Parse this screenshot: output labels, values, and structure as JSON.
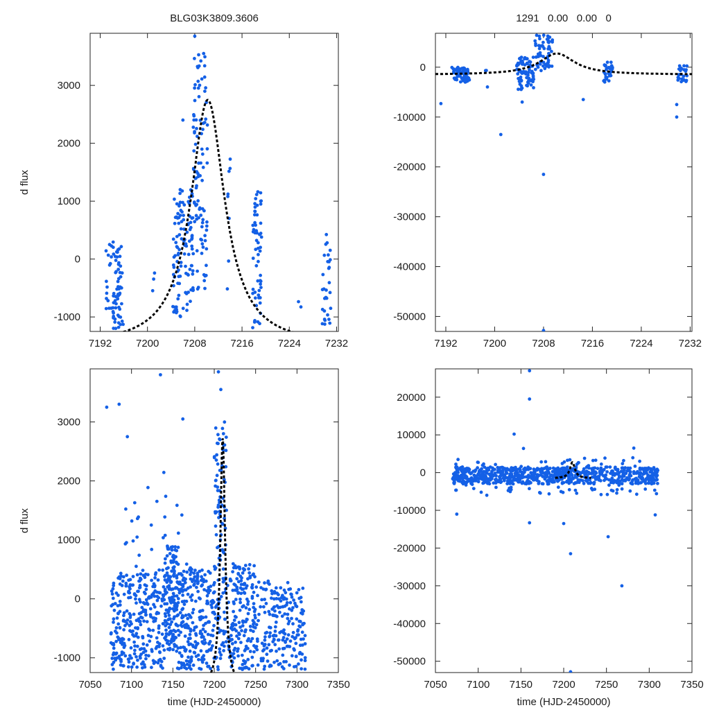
{
  "header": {
    "left_title": "BLG03K3809.3606",
    "right_title": "1291   0.00   0.00   0"
  },
  "style": {
    "point_color": "#1460e6",
    "model_color": "#000000"
  },
  "chart_data": [
    {
      "id": "top-left",
      "type": "scatter",
      "title": "BLG03K3809.3606",
      "xlabel": "",
      "ylabel": "d flux",
      "xlim": [
        7190.3,
        7232.3
      ],
      "ylim": [
        -1250,
        3900
      ],
      "xticks": [
        7192,
        7200,
        7208,
        7216,
        7224,
        7232
      ],
      "yticks": [
        -1000,
        0,
        1000,
        2000,
        3000
      ],
      "model": {
        "t0": 7210.2,
        "peak": 2750,
        "tE": 3.5,
        "baseline": -1500
      },
      "series": [
        {
          "name": "observations",
          "clusters": [
            {
              "x": [
                7193,
                7195.8
              ],
              "y": [
                -1200,
                300
              ],
              "n": 70
            },
            {
              "x": [
                7193,
                7196
              ],
              "y": [
                -1200,
                650
              ],
              "n": 6
            },
            {
              "x": [
                7200.8,
                7201.2
              ],
              "y": [
                -1100,
                330
              ],
              "n": 3
            },
            {
              "x": [
                7204.3,
                7207.8
              ],
              "y": [
                -1000,
                1200
              ],
              "n": 110
            },
            {
              "x": [
                7207.5,
                7210.2
              ],
              "y": [
                -600,
                3600
              ],
              "n": 100
            },
            {
              "x": [
                7213.5,
                7214
              ],
              "y": [
                -750,
                1800
              ],
              "n": 8
            },
            {
              "x": [
                7217.8,
                7219.3
              ],
              "y": [
                -1200,
                1220
              ],
              "n": 60
            },
            {
              "x": [
                7225.5,
                7226
              ],
              "y": [
                -1000,
                -650
              ],
              "n": 2
            },
            {
              "x": [
                7229.5,
                7231
              ],
              "y": [
                -1200,
                450
              ],
              "n": 30
            }
          ]
        }
      ],
      "points": [
        {
          "x": 7208.0,
          "y": 3850
        },
        {
          "x": 7206.0,
          "y": 2400
        },
        {
          "x": 7209.5,
          "y": 3550
        },
        {
          "x": 7210.0,
          "y": 500
        }
      ]
    },
    {
      "id": "top-right",
      "type": "scatter",
      "title": "1291   0.00   0.00   0",
      "xlabel": "",
      "ylabel": "",
      "xlim": [
        7190.3,
        7232.3
      ],
      "ylim": [
        -53000,
        6800
      ],
      "xticks": [
        7192,
        7200,
        7208,
        7216,
        7224,
        7232
      ],
      "yticks": [
        -50000,
        -40000,
        -30000,
        -20000,
        -10000,
        0
      ],
      "model": {
        "t0": 7210.2,
        "peak": 2750,
        "tE": 3.5,
        "baseline": -1500
      },
      "series": [
        {
          "name": "observations",
          "clusters": [
            {
              "x": [
                7193,
                7196
              ],
              "y": [
                -3000,
                0
              ],
              "n": 70
            },
            {
              "x": [
                7198.5,
                7199
              ],
              "y": [
                -4000,
                0
              ],
              "n": 3
            },
            {
              "x": [
                7203.5,
                7206.5
              ],
              "y": [
                -4500,
                2000
              ],
              "n": 80
            },
            {
              "x": [
                7206.5,
                7209.5
              ],
              "y": [
                -1000,
                6500
              ],
              "n": 60
            },
            {
              "x": [
                7217.8,
                7219.3
              ],
              "y": [
                -3000,
                1500
              ],
              "n": 30
            },
            {
              "x": [
                7230,
                7231.5
              ],
              "y": [
                -3000,
                500
              ],
              "n": 25
            }
          ]
        }
      ],
      "points": [
        {
          "x": 7191.2,
          "y": -7300
        },
        {
          "x": 7201.0,
          "y": -13500
        },
        {
          "x": 7208.0,
          "y": -21500
        },
        {
          "x": 7208.0,
          "y": -52800
        },
        {
          "x": 7229.8,
          "y": -7500
        },
        {
          "x": 7229.8,
          "y": -10000
        },
        {
          "x": 7214.5,
          "y": -6500
        },
        {
          "x": 7204.5,
          "y": -7000
        }
      ]
    },
    {
      "id": "bottom-left",
      "type": "scatter",
      "title": "",
      "xlabel": "time (HJD-2450000)",
      "ylabel": "d flux",
      "xlim": [
        7050,
        7350
      ],
      "ylim": [
        -1250,
        3900
      ],
      "xticks": [
        7050,
        7100,
        7150,
        7200,
        7250,
        7300,
        7350
      ],
      "yticks": [
        -1000,
        0,
        1000,
        2000,
        3000
      ],
      "model": {
        "t0": 7210.2,
        "peak": 2750,
        "tE": 3.5,
        "baseline": -1500
      },
      "series": [
        {
          "name": "observations",
          "clusters": [
            {
              "x": [
                7075,
                7110
              ],
              "y": [
                -1200,
                400
              ],
              "n": 160
            },
            {
              "x": [
                7110,
                7140
              ],
              "y": [
                -1200,
                500
              ],
              "n": 140
            },
            {
              "x": [
                7140,
                7155
              ],
              "y": [
                -900,
                900
              ],
              "n": 150
            },
            {
              "x": [
                7155,
                7180
              ],
              "y": [
                -1200,
                600
              ],
              "n": 150
            },
            {
              "x": [
                7180,
                7200
              ],
              "y": [
                -1200,
                500
              ],
              "n": 100
            },
            {
              "x": [
                7200,
                7215
              ],
              "y": [
                -1200,
                3000
              ],
              "n": 120
            },
            {
              "x": [
                7215,
                7250
              ],
              "y": [
                -1200,
                600
              ],
              "n": 180
            },
            {
              "x": [
                7250,
                7290
              ],
              "y": [
                -1200,
                300
              ],
              "n": 140
            },
            {
              "x": [
                7290,
                7310
              ],
              "y": [
                -1200,
                200
              ],
              "n": 70
            },
            {
              "x": [
                7085,
                7170
              ],
              "y": [
                400,
                2300
              ],
              "n": 30
            }
          ]
        }
      ],
      "points": [
        {
          "x": 7070,
          "y": 3250
        },
        {
          "x": 7085,
          "y": 3300
        },
        {
          "x": 7095,
          "y": 2750
        },
        {
          "x": 7135,
          "y": 3800
        },
        {
          "x": 7162,
          "y": 3050
        },
        {
          "x": 7205,
          "y": 3850
        },
        {
          "x": 7208,
          "y": 3550
        }
      ]
    },
    {
      "id": "bottom-right",
      "type": "scatter",
      "title": "",
      "xlabel": "time (HJD-2450000)",
      "ylabel": "",
      "xlim": [
        7050,
        7350
      ],
      "ylim": [
        -53000,
        27500
      ],
      "xticks": [
        7050,
        7100,
        7150,
        7200,
        7250,
        7300,
        7350
      ],
      "yticks": [
        -50000,
        -40000,
        -30000,
        -20000,
        -10000,
        0,
        10000,
        20000
      ],
      "model": {
        "t0": 7210.2,
        "peak": 2750,
        "tE": 3.5,
        "baseline": -1500,
        "trim": [
          7190,
          7232
        ]
      },
      "series": [
        {
          "name": "observations",
          "clusters": [
            {
              "x": [
                7070,
                7310
              ],
              "y": [
                -3000,
                1500
              ],
              "n": 700
            },
            {
              "x": [
                7070,
                7310
              ],
              "y": [
                -6000,
                4000
              ],
              "n": 120
            }
          ]
        }
      ],
      "points": [
        {
          "x": 7160,
          "y": 27000
        },
        {
          "x": 7160,
          "y": 19500
        },
        {
          "x": 7142,
          "y": 10200
        },
        {
          "x": 7153,
          "y": 6400
        },
        {
          "x": 7075,
          "y": -11000
        },
        {
          "x": 7160,
          "y": -13300
        },
        {
          "x": 7200,
          "y": -13500
        },
        {
          "x": 7208,
          "y": -21500
        },
        {
          "x": 7252,
          "y": -17000
        },
        {
          "x": 7268,
          "y": -30000
        },
        {
          "x": 7208,
          "y": -52800
        },
        {
          "x": 7307,
          "y": -11200
        },
        {
          "x": 7282,
          "y": 6500
        }
      ]
    }
  ]
}
